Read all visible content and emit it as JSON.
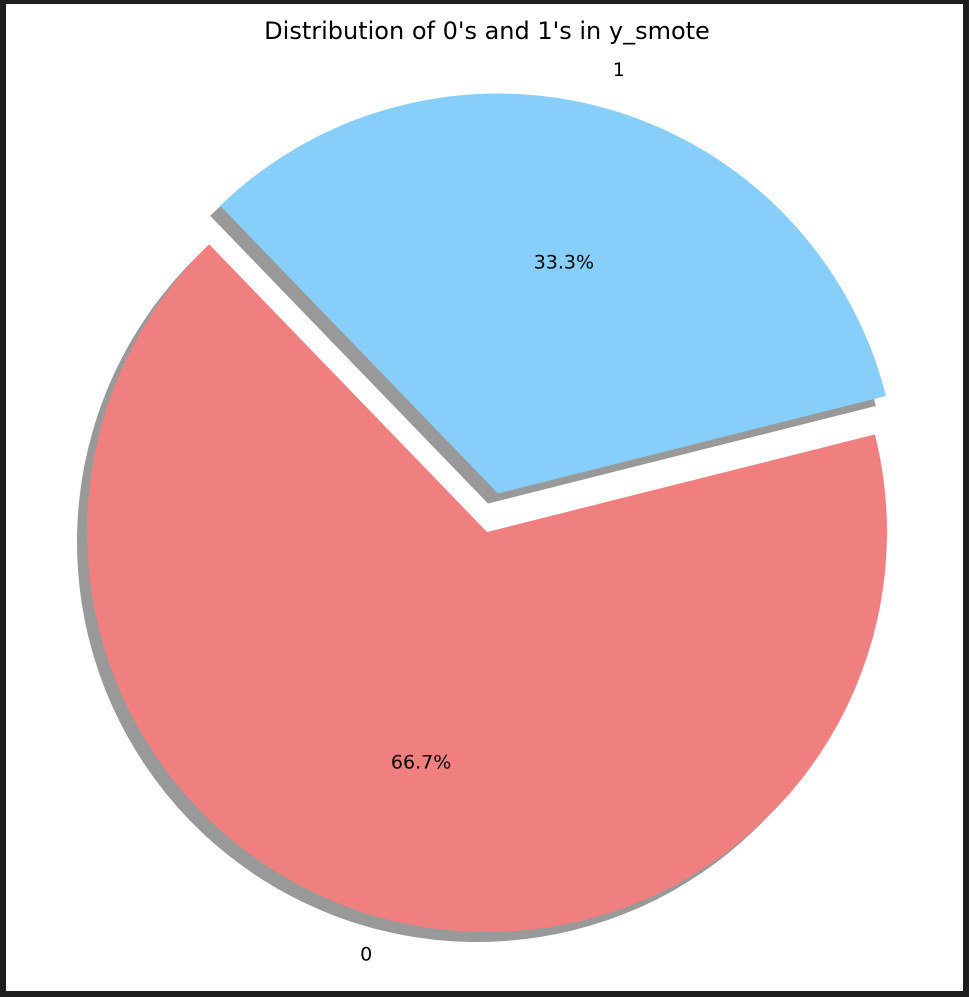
{
  "chart_data": {
    "type": "pie",
    "title": "Distribution of 0's and 1's in y_smote",
    "slices": [
      {
        "label": "0",
        "value": 66.7,
        "pct_label": "66.7%",
        "color": "#f08080",
        "exploded": false
      },
      {
        "label": "1",
        "value": 33.3,
        "pct_label": "33.3%",
        "color": "#87cefa",
        "exploded": true
      }
    ],
    "shadow": true,
    "legend": false
  }
}
